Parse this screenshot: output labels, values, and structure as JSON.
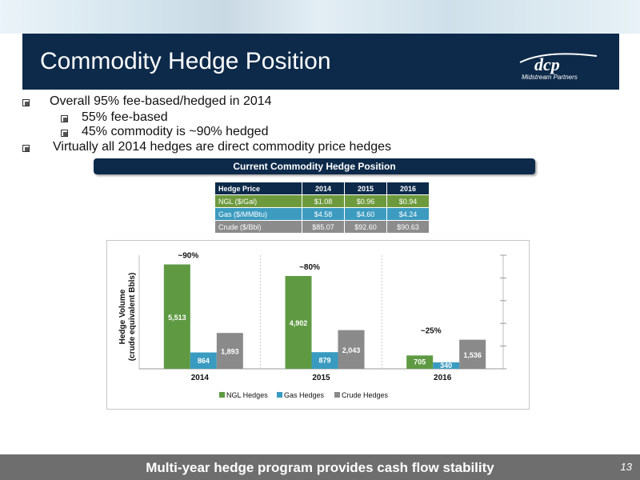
{
  "slide": {
    "title": "Commodity Hedge Position",
    "logo_text": "dcp",
    "logo_subtext": "Midstream Partners",
    "bullets": [
      {
        "level": 1,
        "text": "Overall 95% fee-based/hedged in 2014"
      },
      {
        "level": 2,
        "text": "55% fee-based"
      },
      {
        "level": 2,
        "text": "45% commodity is ~90% hedged"
      },
      {
        "level": 1,
        "text": "Virtually all 2014 hedges are direct commodity price hedges"
      }
    ],
    "section_title": "Current Commodity Hedge Position",
    "footer": "Multi-year hedge program provides cash flow stability",
    "page_number": "13"
  },
  "price_table": {
    "headers": [
      "Hedge Price",
      "2014",
      "2015",
      "2016"
    ],
    "rows": [
      {
        "label": "NGL ($/Gal)",
        "values": [
          "$1.08",
          "$0.96",
          "$0.94"
        ],
        "color": "#6e9a3e"
      },
      {
        "label": "Gas ($/MMBtu)",
        "values": [
          "$4.58",
          "$4.60",
          "$4.24"
        ],
        "color": "#3d9bc0"
      },
      {
        "label": "Crude ($/Bbl)",
        "values": [
          "$85.07",
          "$92.60",
          "$90.63"
        ],
        "color": "#8c8c8c"
      }
    ],
    "header_color": "#0d2a4a"
  },
  "chart_data": {
    "type": "bar",
    "categories": [
      "2014",
      "2015",
      "2016"
    ],
    "series": [
      {
        "name": "NGL Hedges",
        "values": [
          5513,
          4902,
          705
        ],
        "color": "#5f9a43"
      },
      {
        "name": "Gas Hedges",
        "values": [
          864,
          879,
          340
        ],
        "color": "#3a9bc1"
      },
      {
        "name": "Crude Hedges",
        "values": [
          1893,
          2043,
          1536
        ],
        "color": "#8a8a8a"
      }
    ],
    "annotations": [
      "~90%",
      "~80%",
      "~25%"
    ],
    "ylabel_line1": "Hedge Volume",
    "ylabel_line2": "(crude equivalent Bbls)",
    "ylim": [
      0,
      6000
    ],
    "legend": "bottom",
    "grid": false
  }
}
